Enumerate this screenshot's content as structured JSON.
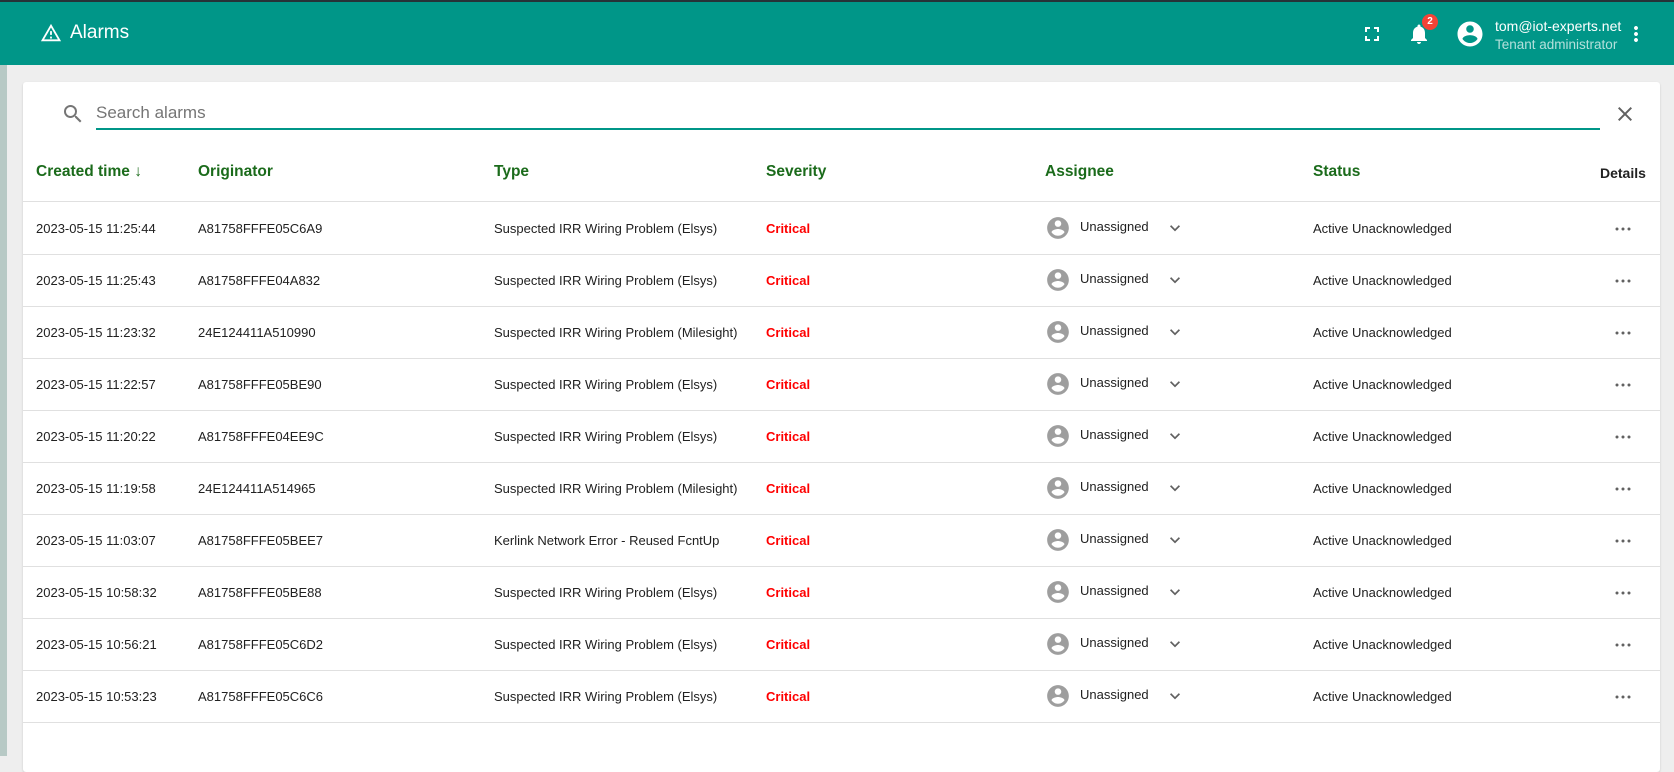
{
  "header": {
    "title": "Alarms",
    "title_icon": "warning-icon",
    "notification_count": "2",
    "user_email": "tom@iot-experts.net",
    "user_role": "Tenant administrator"
  },
  "search": {
    "placeholder": "Search alarms",
    "value": ""
  },
  "table": {
    "columns": {
      "created_time": "Created time",
      "originator": "Originator",
      "type": "Type",
      "severity": "Severity",
      "assignee": "Assignee",
      "status": "Status",
      "details": "Details"
    },
    "sort": {
      "column": "created_time",
      "direction": "descending"
    },
    "rows": [
      {
        "time": "2023-05-15 11:25:44",
        "originator": "A81758FFFE05C6A9",
        "type": "Suspected IRR Wiring Problem (Elsys)",
        "severity": "Critical",
        "assignee": "Unassigned",
        "status": "Active Unacknowledged"
      },
      {
        "time": "2023-05-15 11:25:43",
        "originator": "A81758FFFE04A832",
        "type": "Suspected IRR Wiring Problem (Elsys)",
        "severity": "Critical",
        "assignee": "Unassigned",
        "status": "Active Unacknowledged"
      },
      {
        "time": "2023-05-15 11:23:32",
        "originator": "24E124411A510990",
        "type": "Suspected IRR Wiring Problem (Milesight)",
        "severity": "Critical",
        "assignee": "Unassigned",
        "status": "Active Unacknowledged"
      },
      {
        "time": "2023-05-15 11:22:57",
        "originator": "A81758FFFE05BE90",
        "type": "Suspected IRR Wiring Problem (Elsys)",
        "severity": "Critical",
        "assignee": "Unassigned",
        "status": "Active Unacknowledged"
      },
      {
        "time": "2023-05-15 11:20:22",
        "originator": "A81758FFFE04EE9C",
        "type": "Suspected IRR Wiring Problem (Elsys)",
        "severity": "Critical",
        "assignee": "Unassigned",
        "status": "Active Unacknowledged"
      },
      {
        "time": "2023-05-15 11:19:58",
        "originator": "24E124411A514965",
        "type": "Suspected IRR Wiring Problem (Milesight)",
        "severity": "Critical",
        "assignee": "Unassigned",
        "status": "Active Unacknowledged"
      },
      {
        "time": "2023-05-15 11:03:07",
        "originator": "A81758FFFE05BEE7",
        "type": "Kerlink Network Error - Reused FcntUp",
        "severity": "Critical",
        "assignee": "Unassigned",
        "status": "Active Unacknowledged"
      },
      {
        "time": "2023-05-15 10:58:32",
        "originator": "A81758FFFE05BE88",
        "type": "Suspected IRR Wiring Problem (Elsys)",
        "severity": "Critical",
        "assignee": "Unassigned",
        "status": "Active Unacknowledged"
      },
      {
        "time": "2023-05-15 10:56:21",
        "originator": "A81758FFFE05C6D2",
        "type": "Suspected IRR Wiring Problem (Elsys)",
        "severity": "Critical",
        "assignee": "Unassigned",
        "status": "Active Unacknowledged"
      },
      {
        "time": "2023-05-15 10:53:23",
        "originator": "A81758FFFE05C6C6",
        "type": "Suspected IRR Wiring Problem (Elsys)",
        "severity": "Critical",
        "assignee": "Unassigned",
        "status": "Active Unacknowledged"
      }
    ]
  },
  "colors": {
    "primary": "#009688",
    "header_text": "#1b6b1b",
    "critical": "#ff0000",
    "badge": "#f44336"
  }
}
